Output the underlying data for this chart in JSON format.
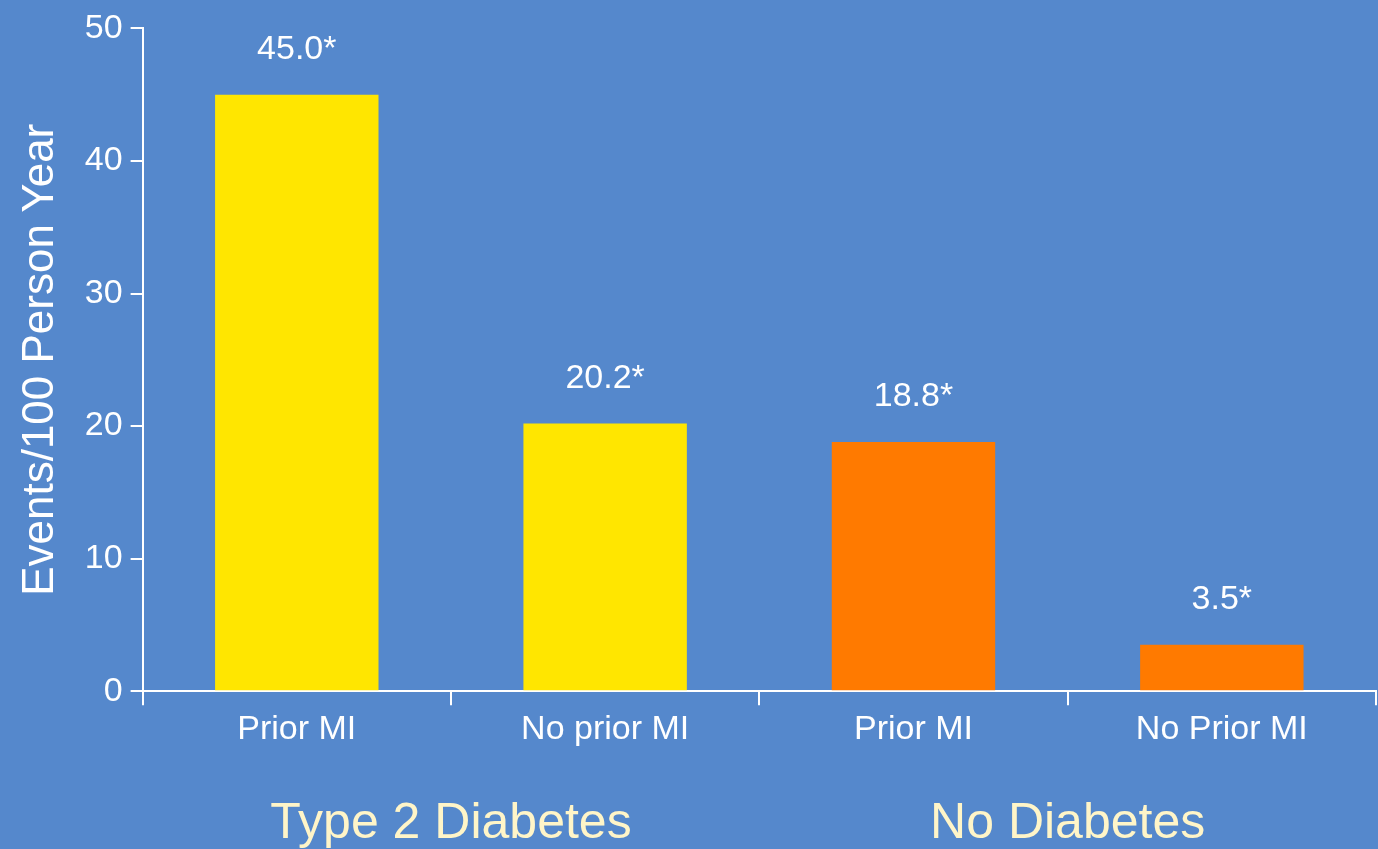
{
  "chart_data": {
    "type": "bar",
    "ylabel": "Events/100 Person Year",
    "categories": [
      "Prior MI",
      "No prior MI",
      "Prior MI",
      "No Prior MI"
    ],
    "values": [
      45.0,
      20.2,
      18.8,
      3.5
    ],
    "value_labels": [
      "45.0*",
      "20.2*",
      "18.8*",
      "3.5*"
    ],
    "colors": [
      "#ffe600",
      "#ffe600",
      "#ff7a00",
      "#ff7a00"
    ],
    "ylim": [
      0,
      50
    ],
    "yticks": [
      0,
      10,
      20,
      30,
      40,
      50
    ],
    "grid": false,
    "legend": false,
    "annotations": [
      "Type 2 Diabetes",
      "No Diabetes"
    ]
  }
}
